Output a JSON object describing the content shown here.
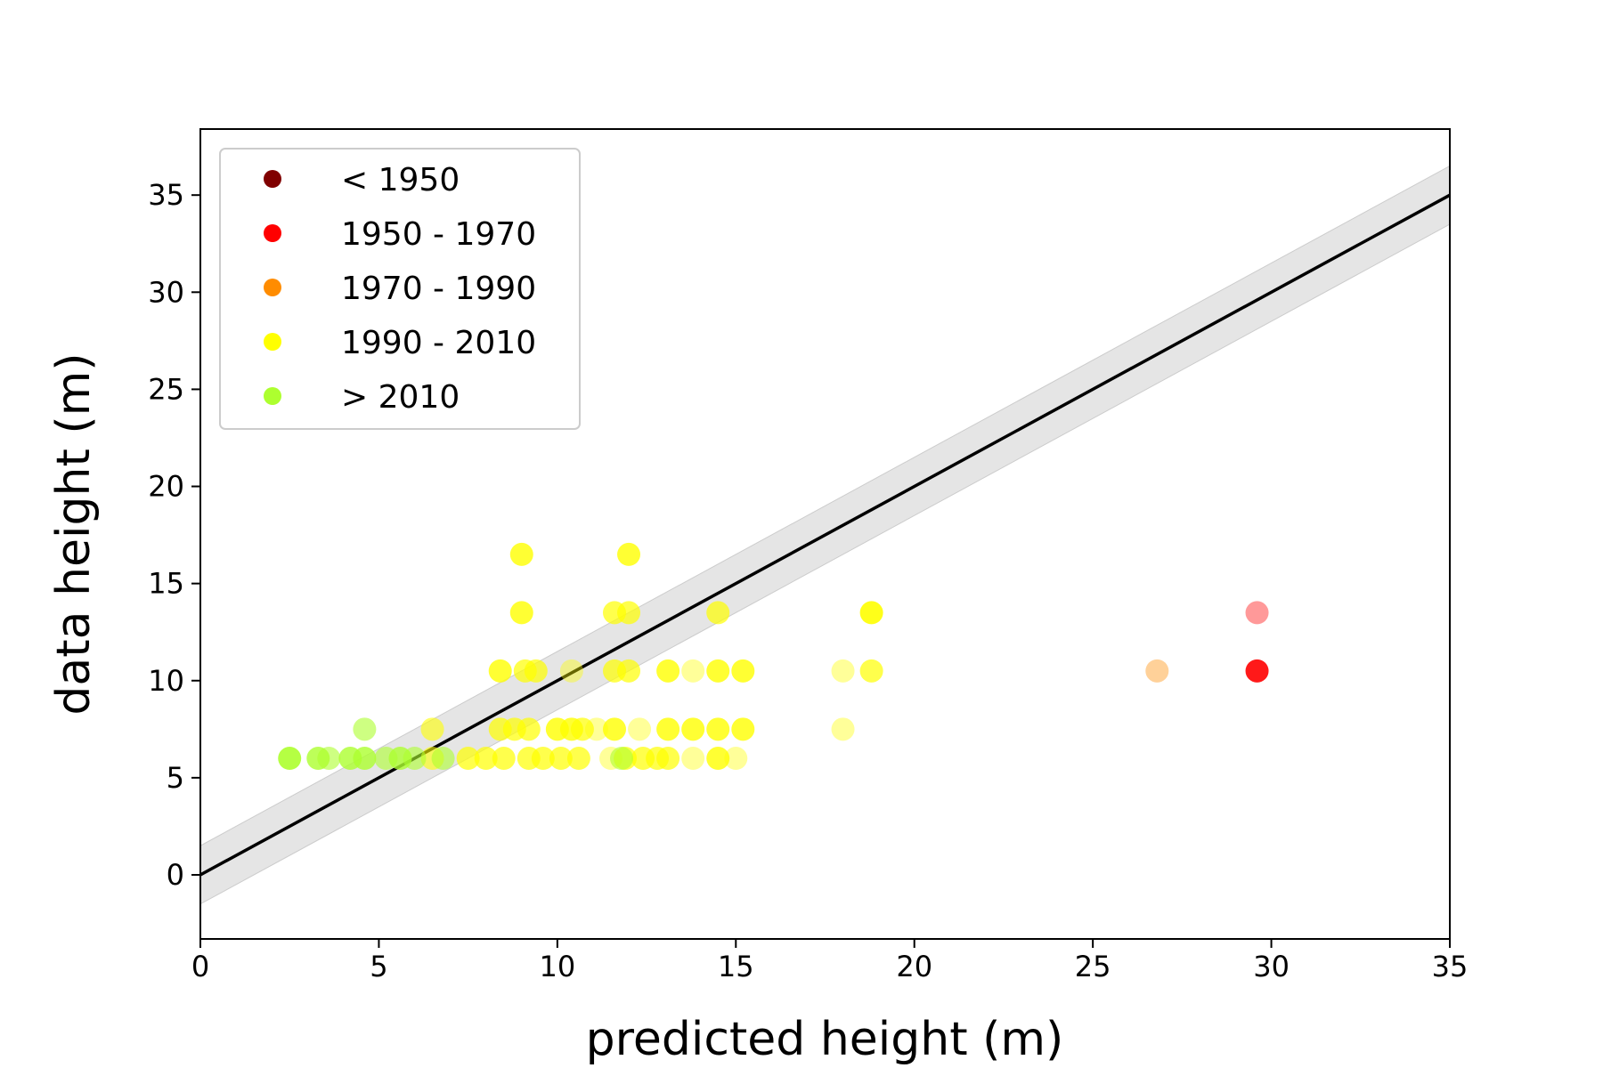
{
  "chart_data": {
    "type": "scatter",
    "title": "",
    "xlabel": "predicted height (m)",
    "ylabel": "data height (m)",
    "xlim": [
      0,
      35
    ],
    "ylim": [
      -3.3,
      38.4
    ],
    "xticks": [
      0,
      5,
      10,
      15,
      20,
      25,
      30,
      35
    ],
    "yticks": [
      0,
      5,
      10,
      15,
      20,
      25,
      30,
      35
    ],
    "grid": false,
    "legend_position": "top-left",
    "reference_line": {
      "slope": 1,
      "intercept": 0,
      "band_halfwidth": 1.5,
      "color": "#000000",
      "band_color": "#cccccc"
    },
    "series": [
      {
        "name": "< 1950",
        "color": "#800000",
        "points": []
      },
      {
        "name": "1950 - 1970",
        "color": "#ff0000",
        "points": [
          [
            29.6,
            13.5,
            0.4
          ],
          [
            29.6,
            10.5,
            0.9
          ]
        ]
      },
      {
        "name": "1970 - 1990",
        "color": "#ff8c00",
        "points": [
          [
            26.8,
            10.5,
            0.4
          ]
        ]
      },
      {
        "name": "1990 - 2010",
        "color": "#ffff00",
        "points": [
          [
            9.0,
            16.5,
            0.8
          ],
          [
            12.0,
            16.5,
            0.8
          ],
          [
            9.0,
            13.5,
            0.8
          ],
          [
            11.6,
            13.5,
            0.7
          ],
          [
            12.0,
            13.5,
            0.7
          ],
          [
            14.5,
            13.5,
            0.7
          ],
          [
            18.8,
            13.5,
            0.9
          ],
          [
            8.4,
            10.5,
            0.8
          ],
          [
            9.1,
            10.5,
            0.7
          ],
          [
            9.4,
            10.5,
            0.7
          ],
          [
            10.4,
            10.5,
            0.4
          ],
          [
            11.6,
            10.5,
            0.7
          ],
          [
            12.0,
            10.5,
            0.7
          ],
          [
            13.1,
            10.5,
            0.8
          ],
          [
            13.8,
            10.5,
            0.4
          ],
          [
            14.5,
            10.5,
            0.8
          ],
          [
            15.2,
            10.5,
            0.8
          ],
          [
            18.0,
            10.5,
            0.4
          ],
          [
            18.8,
            10.5,
            0.7
          ],
          [
            6.5,
            7.5,
            0.6
          ],
          [
            8.4,
            7.5,
            0.7
          ],
          [
            8.8,
            7.5,
            0.7
          ],
          [
            9.2,
            7.5,
            0.7
          ],
          [
            10.0,
            7.5,
            0.8
          ],
          [
            10.4,
            7.5,
            0.8
          ],
          [
            10.7,
            7.5,
            0.7
          ],
          [
            11.1,
            7.5,
            0.4
          ],
          [
            11.6,
            7.5,
            0.8
          ],
          [
            12.3,
            7.5,
            0.4
          ],
          [
            13.1,
            7.5,
            0.8
          ],
          [
            13.8,
            7.5,
            0.8
          ],
          [
            14.5,
            7.5,
            0.8
          ],
          [
            15.2,
            7.5,
            0.8
          ],
          [
            18.0,
            7.5,
            0.4
          ],
          [
            6.5,
            6.0,
            0.6
          ],
          [
            7.5,
            6.0,
            0.7
          ],
          [
            8.0,
            6.0,
            0.7
          ],
          [
            8.5,
            6.0,
            0.7
          ],
          [
            9.2,
            6.0,
            0.7
          ],
          [
            9.6,
            6.0,
            0.7
          ],
          [
            10.1,
            6.0,
            0.7
          ],
          [
            10.6,
            6.0,
            0.7
          ],
          [
            11.5,
            6.0,
            0.4
          ],
          [
            11.9,
            6.0,
            0.7
          ],
          [
            12.4,
            6.0,
            0.7
          ],
          [
            12.8,
            6.0,
            0.7
          ],
          [
            13.1,
            6.0,
            0.7
          ],
          [
            13.8,
            6.0,
            0.4
          ],
          [
            14.5,
            6.0,
            0.8
          ],
          [
            15.0,
            6.0,
            0.4
          ]
        ]
      },
      {
        "name": "> 2010",
        "color": "#adff2f",
        "points": [
          [
            2.5,
            6.0,
            0.9
          ],
          [
            3.3,
            6.0,
            0.8
          ],
          [
            3.6,
            6.0,
            0.6
          ],
          [
            4.2,
            6.0,
            0.8
          ],
          [
            4.6,
            6.0,
            0.8
          ],
          [
            5.2,
            6.0,
            0.6
          ],
          [
            5.6,
            6.0,
            0.8
          ],
          [
            6.0,
            6.0,
            0.6
          ],
          [
            6.8,
            6.0,
            0.6
          ],
          [
            4.6,
            7.5,
            0.6
          ],
          [
            11.8,
            6.0,
            0.6
          ]
        ]
      }
    ]
  }
}
